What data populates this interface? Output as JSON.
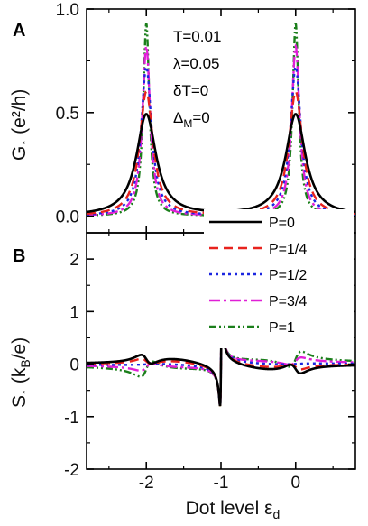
{
  "chart_data": [
    {
      "type": "line",
      "panel_label": "A",
      "ylabel": "G",
      "ylabel_sub": "↑",
      "ylabel_unit": "(e²/h)",
      "ylim": [
        -0.08,
        1.0
      ],
      "xlim": [
        -2.8,
        0.8
      ],
      "yticks": [
        "0.0",
        "0.5",
        "1.0"
      ],
      "annotations": [
        "T=0.01",
        "λ=0.05",
        "δT=0",
        "Δ",
        "M",
        "=0"
      ],
      "series": [
        {
          "name": "P=0",
          "color": "#000000",
          "dash": "solid",
          "peak": 0.49,
          "width": 0.16,
          "x": [
            -2.8,
            -2.4,
            -2.2,
            -2.1,
            -2.0,
            -1.9,
            -1.8,
            -1.6,
            -1.0,
            -0.4,
            -0.2,
            -0.1,
            0.0,
            0.1,
            0.2,
            0.4,
            0.8
          ],
          "y": [
            0.12,
            0.07,
            0.15,
            0.33,
            0.49,
            0.33,
            0.15,
            0.06,
            0.01,
            0.06,
            0.15,
            0.33,
            0.49,
            0.33,
            0.15,
            0.07,
            0.03
          ]
        },
        {
          "name": "P=1/4",
          "color": "#e8231e",
          "dash": "10,6",
          "peak": 0.6,
          "width": 0.11,
          "x": [
            -2.8,
            -2.2,
            -2.1,
            -2.0,
            -1.9,
            -1.8,
            -1.0,
            -0.2,
            -0.1,
            0.0,
            0.1,
            0.2,
            0.8
          ],
          "y": [
            0.08,
            0.12,
            0.29,
            0.6,
            0.29,
            0.12,
            0.01,
            0.12,
            0.29,
            0.6,
            0.29,
            0.12,
            0.02
          ]
        },
        {
          "name": "P=1/2",
          "color": "#1b26e0",
          "dash": "3,4",
          "peak": 0.72,
          "width": 0.085,
          "x": [
            -2.8,
            -2.2,
            -2.1,
            -2.0,
            -1.9,
            -1.8,
            -1.0,
            -0.2,
            -0.1,
            0.0,
            0.1,
            0.2,
            0.8
          ],
          "y": [
            0.05,
            0.07,
            0.3,
            0.72,
            0.3,
            0.07,
            0.0,
            0.07,
            0.3,
            0.72,
            0.3,
            0.07,
            0.01
          ]
        },
        {
          "name": "P=3/4",
          "color": "#e01fd6",
          "dash": "12,4,3,4",
          "peak": 0.82,
          "width": 0.065,
          "x": [
            -2.8,
            -2.2,
            -2.1,
            -2.0,
            -1.9,
            -1.8,
            -1.0,
            -0.2,
            -0.1,
            0.0,
            0.1,
            0.2,
            0.8
          ],
          "y": [
            0.03,
            0.06,
            0.25,
            0.82,
            0.25,
            0.06,
            0.0,
            0.06,
            0.25,
            0.82,
            0.25,
            0.06,
            0.01
          ]
        },
        {
          "name": "P=1",
          "color": "#1b7f1b",
          "dash": "8,3,2,3,2,3",
          "peak": 0.93,
          "width": 0.05,
          "x": [
            -2.8,
            -2.2,
            -2.1,
            -2.0,
            -1.9,
            -1.8,
            -1.0,
            -0.2,
            -0.1,
            0.0,
            0.1,
            0.2,
            0.8
          ],
          "y": [
            0.02,
            0.05,
            0.19,
            0.93,
            0.19,
            0.05,
            0.0,
            0.05,
            0.19,
            0.93,
            0.19,
            0.05,
            0.0
          ]
        }
      ]
    },
    {
      "type": "line",
      "panel_label": "B",
      "ylabel": "S",
      "ylabel_sub": "↑",
      "ylabel_unit": "(k",
      "ylabel_unit_sub": "B",
      "ylabel_unit_end": "/e)",
      "xlabel": "Dot level ε",
      "xlabel_sub": "d",
      "ylim": [
        -2.0,
        2.5
      ],
      "xlim": [
        -2.8,
        0.8
      ],
      "yticks": [
        "-2",
        "-1",
        "0",
        "1",
        "2"
      ],
      "xticks": [
        "-2",
        "-1",
        "0"
      ],
      "series": [
        {
          "name": "P=0",
          "color": "#000000",
          "dash": "solid",
          "amp": 0.25,
          "edge": 0.34,
          "spike": 1.6,
          "x": [
            -2.8,
            -2.2,
            -2.05,
            -1.95,
            -1.8,
            -1.2,
            -1.02,
            -0.98,
            -0.8,
            -0.2,
            -0.05,
            0.05,
            0.2,
            0.8
          ],
          "y": [
            -0.08,
            -0.26,
            -0.38,
            0.38,
            0.26,
            0.1,
            -1.6,
            1.6,
            -0.1,
            -0.26,
            -0.38,
            0.38,
            0.26,
            0.08
          ]
        },
        {
          "name": "P=1/4",
          "color": "#e8231e",
          "dash": "10,6",
          "amp": 0.15,
          "edge": 0.22,
          "spike": 1.6,
          "x": [
            -2.8,
            -2.1,
            -1.9,
            -1.0,
            0.0,
            0.8
          ],
          "y": [
            -0.05,
            -0.25,
            0.25,
            0.0,
            0.0,
            0.05
          ]
        },
        {
          "name": "P=1/2",
          "color": "#1b26e0",
          "dash": "3,4",
          "amp": 0.0,
          "edge": 0.05,
          "spike": 1.6,
          "x": [
            -2.8,
            -2.0,
            -1.0,
            0.0,
            0.8
          ],
          "y": [
            0.0,
            0.0,
            0.0,
            0.0,
            0.0
          ]
        },
        {
          "name": "P=3/4",
          "color": "#e01fd6",
          "dash": "12,4,3,4",
          "amp": -0.17,
          "edge": -0.1,
          "spike": 1.6,
          "x": [
            -2.8,
            -2.1,
            -1.9,
            -1.0,
            0.0,
            0.8
          ],
          "y": [
            0.05,
            0.25,
            -0.25,
            0.0,
            0.0,
            -0.05
          ]
        },
        {
          "name": "P=1",
          "color": "#1b7f1b",
          "dash": "8,3,2,3,2,3",
          "amp": -0.35,
          "edge": -0.2,
          "spike": 1.6,
          "x": [
            -2.8,
            -2.1,
            -1.9,
            -1.0,
            0.0,
            0.8
          ],
          "y": [
            0.12,
            0.45,
            -0.45,
            0.0,
            0.0,
            -0.12
          ]
        }
      ]
    }
  ]
}
